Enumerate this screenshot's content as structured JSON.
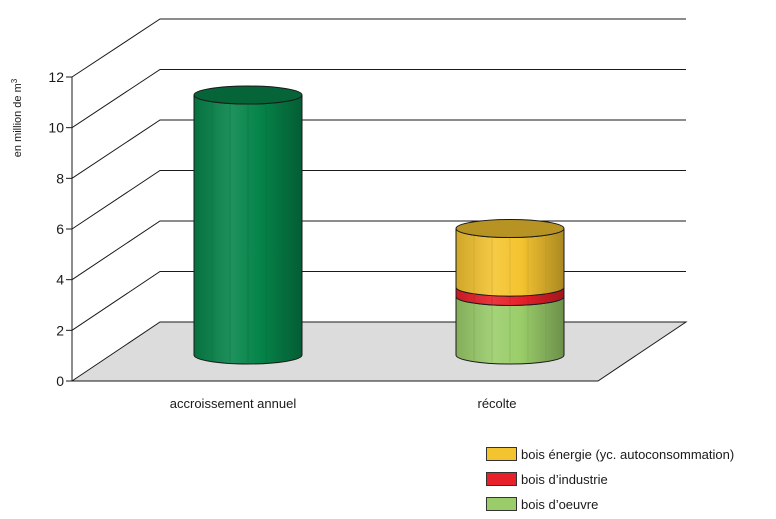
{
  "chart_data": {
    "type": "bar",
    "categories": [
      "accroissement annuel",
      "récolte"
    ],
    "series": [
      {
        "name": "bois d'oeuvre",
        "values": [
          null,
          2.5
        ],
        "color": "#9acd6a"
      },
      {
        "name": "bois d’industrie",
        "values": [
          null,
          0.4
        ],
        "color": "#e8202a"
      },
      {
        "name": "bois énergie (yc. autoconsommation)",
        "values": [
          null,
          2.5
        ],
        "color": "#f4c430"
      }
    ],
    "totals": [
      11.1,
      5.4
    ],
    "accroissement_value": 11.1,
    "accroissement_color": "#06854a",
    "ylabel_main": "en million de m",
    "ylabel_sup": "3",
    "ylim": [
      0,
      12
    ],
    "yticks": [
      0,
      2,
      4,
      6,
      8,
      10,
      12
    ],
    "grid": true,
    "legend_position": "bottom-right",
    "legend": [
      {
        "label": "bois énergie (yc. autoconsommation)",
        "color": "#f4c430"
      },
      {
        "label": "bois d’industrie",
        "color": "#e8202a"
      },
      {
        "label": "bois d’oeuvre",
        "color": "#9acd6a"
      }
    ]
  }
}
